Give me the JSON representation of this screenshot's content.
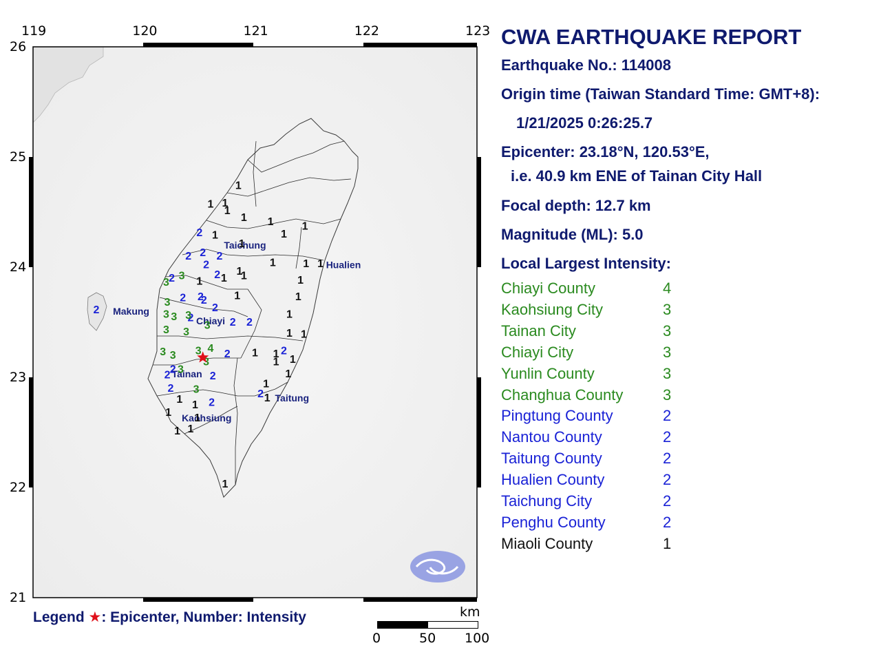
{
  "report": {
    "title": "CWA EARTHQUAKE REPORT",
    "eq_no": "Earthquake No.: 114008",
    "origin_label": "Origin time (Taiwan Standard Time: GMT+8):",
    "origin_time": "1/21/2025  0:26:25.7",
    "epicenter": "Epicenter: 23.18°N, 120.53°E,",
    "epicenter_ref": "i.e. 40.9 km ENE of Tainan City Hall",
    "depth": "Focal depth: 12.7 km",
    "magnitude": "Magnitude (ML): 5.0",
    "largest_heading": "Local Largest Intensity:"
  },
  "intensities": [
    {
      "name": "Chiayi County",
      "level": "4",
      "color": "#2a8a1f"
    },
    {
      "name": "Kaohsiung City",
      "level": "3",
      "color": "#2a8a1f"
    },
    {
      "name": "Tainan City",
      "level": "3",
      "color": "#2a8a1f"
    },
    {
      "name": "Chiayi City",
      "level": "3",
      "color": "#2a8a1f"
    },
    {
      "name": "Yunlin County",
      "level": "3",
      "color": "#2a8a1f"
    },
    {
      "name": "Changhua County",
      "level": "3",
      "color": "#2a8a1f"
    },
    {
      "name": "Pingtung County",
      "level": "2",
      "color": "#1a22d6"
    },
    {
      "name": "Nantou County",
      "level": "2",
      "color": "#1a22d6"
    },
    {
      "name": "Taitung County",
      "level": "2",
      "color": "#1a22d6"
    },
    {
      "name": "Hualien County",
      "level": "2",
      "color": "#1a22d6"
    },
    {
      "name": "Taichung City",
      "level": "2",
      "color": "#1a22d6"
    },
    {
      "name": "Penghu County",
      "level": "2",
      "color": "#1a22d6"
    },
    {
      "name": "Miaoli County",
      "level": "1",
      "color": "#111111"
    }
  ],
  "legend": {
    "prefix": "Legend ",
    "star": "★",
    "text": ": Epicenter, Number: Intensity"
  },
  "axes": {
    "lon_ticks": [
      "119",
      "120",
      "121",
      "122",
      "123"
    ],
    "lat_ticks": [
      "26",
      "25",
      "24",
      "23",
      "22",
      "21"
    ]
  },
  "scale_bar": {
    "unit": "km",
    "labels": [
      "0",
      "50",
      "100"
    ]
  },
  "cities": [
    {
      "name": "Taichung",
      "lon": 120.72,
      "lat": 24.17
    },
    {
      "name": "Hualien",
      "lon": 121.64,
      "lat": 23.99
    },
    {
      "name": "Makung",
      "lon": 119.72,
      "lat": 23.57
    },
    {
      "name": "Chiayi",
      "lon": 120.47,
      "lat": 23.48
    },
    {
      "name": "Tainan",
      "lon": 120.25,
      "lat": 23.0
    },
    {
      "name": "Taitung",
      "lon": 121.18,
      "lat": 22.78
    },
    {
      "name": "Kaohsiung",
      "lon": 120.34,
      "lat": 22.6
    }
  ],
  "epicenter_point": {
    "lon": 120.53,
    "lat": 23.18
  },
  "stations": [
    {
      "i": 1,
      "lon": 120.85,
      "lat": 24.71
    },
    {
      "i": 1,
      "lon": 120.6,
      "lat": 24.54
    },
    {
      "i": 1,
      "lon": 120.73,
      "lat": 24.55
    },
    {
      "i": 1,
      "lon": 120.75,
      "lat": 24.48
    },
    {
      "i": 1,
      "lon": 120.9,
      "lat": 24.42
    },
    {
      "i": 1,
      "lon": 121.14,
      "lat": 24.38
    },
    {
      "i": 1,
      "lon": 121.45,
      "lat": 24.34
    },
    {
      "i": 1,
      "lon": 121.26,
      "lat": 24.27
    },
    {
      "i": 1,
      "lon": 120.64,
      "lat": 24.26
    },
    {
      "i": 1,
      "lon": 120.88,
      "lat": 24.18
    },
    {
      "i": 1,
      "lon": 121.16,
      "lat": 24.01
    },
    {
      "i": 1,
      "lon": 121.46,
      "lat": 24.0
    },
    {
      "i": 1,
      "lon": 121.59,
      "lat": 24.0
    },
    {
      "i": 1,
      "lon": 120.86,
      "lat": 23.93
    },
    {
      "i": 1,
      "lon": 120.9,
      "lat": 23.89
    },
    {
      "i": 1,
      "lon": 120.72,
      "lat": 23.87
    },
    {
      "i": 1,
      "lon": 121.41,
      "lat": 23.85
    },
    {
      "i": 1,
      "lon": 120.5,
      "lat": 23.84
    },
    {
      "i": 1,
      "lon": 120.84,
      "lat": 23.71
    },
    {
      "i": 1,
      "lon": 121.39,
      "lat": 23.7
    },
    {
      "i": 1,
      "lon": 121.31,
      "lat": 23.54
    },
    {
      "i": 1,
      "lon": 121.31,
      "lat": 23.37
    },
    {
      "i": 1,
      "lon": 121.44,
      "lat": 23.36
    },
    {
      "i": 1,
      "lon": 121.0,
      "lat": 23.19
    },
    {
      "i": 1,
      "lon": 121.19,
      "lat": 23.18
    },
    {
      "i": 1,
      "lon": 121.19,
      "lat": 23.11
    },
    {
      "i": 1,
      "lon": 121.34,
      "lat": 23.13
    },
    {
      "i": 1,
      "lon": 121.3,
      "lat": 23.0
    },
    {
      "i": 1,
      "lon": 121.1,
      "lat": 22.91
    },
    {
      "i": 1,
      "lon": 120.32,
      "lat": 22.77
    },
    {
      "i": 1,
      "lon": 120.46,
      "lat": 22.72
    },
    {
      "i": 1,
      "lon": 120.48,
      "lat": 22.6
    },
    {
      "i": 1,
      "lon": 120.22,
      "lat": 22.65
    },
    {
      "i": 1,
      "lon": 120.3,
      "lat": 22.48
    },
    {
      "i": 1,
      "lon": 120.42,
      "lat": 22.5
    },
    {
      "i": 1,
      "lon": 120.73,
      "lat": 22.0
    },
    {
      "i": 1,
      "lon": 121.11,
      "lat": 22.78
    },
    {
      "i": 2,
      "lon": 120.5,
      "lat": 24.28
    },
    {
      "i": 2,
      "lon": 120.4,
      "lat": 24.07
    },
    {
      "i": 2,
      "lon": 120.53,
      "lat": 24.1
    },
    {
      "i": 2,
      "lon": 120.68,
      "lat": 24.07
    },
    {
      "i": 2,
      "lon": 120.56,
      "lat": 23.99
    },
    {
      "i": 2,
      "lon": 120.66,
      "lat": 23.9
    },
    {
      "i": 2,
      "lon": 120.25,
      "lat": 23.87
    },
    {
      "i": 2,
      "lon": 120.35,
      "lat": 23.69
    },
    {
      "i": 2,
      "lon": 120.51,
      "lat": 23.7
    },
    {
      "i": 2,
      "lon": 120.54,
      "lat": 23.67
    },
    {
      "i": 2,
      "lon": 120.64,
      "lat": 23.6
    },
    {
      "i": 2,
      "lon": 120.42,
      "lat": 23.51
    },
    {
      "i": 2,
      "lon": 120.8,
      "lat": 23.47
    },
    {
      "i": 2,
      "lon": 120.95,
      "lat": 23.47
    },
    {
      "i": 2,
      "lon": 120.75,
      "lat": 23.18
    },
    {
      "i": 2,
      "lon": 120.21,
      "lat": 22.99
    },
    {
      "i": 2,
      "lon": 120.24,
      "lat": 22.87
    },
    {
      "i": 2,
      "lon": 120.62,
      "lat": 22.98
    },
    {
      "i": 2,
      "lon": 120.61,
      "lat": 22.74
    },
    {
      "i": 2,
      "lon": 121.26,
      "lat": 23.21
    },
    {
      "i": 2,
      "lon": 121.05,
      "lat": 22.82
    },
    {
      "i": 2,
      "lon": 119.57,
      "lat": 23.58
    },
    {
      "i": 2,
      "lon": 120.26,
      "lat": 23.04
    },
    {
      "i": 3,
      "lon": 120.2,
      "lat": 23.83
    },
    {
      "i": 3,
      "lon": 120.34,
      "lat": 23.89
    },
    {
      "i": 3,
      "lon": 120.21,
      "lat": 23.65
    },
    {
      "i": 3,
      "lon": 120.2,
      "lat": 23.54
    },
    {
      "i": 3,
      "lon": 120.27,
      "lat": 23.52
    },
    {
      "i": 3,
      "lon": 120.4,
      "lat": 23.53
    },
    {
      "i": 3,
      "lon": 120.57,
      "lat": 23.44
    },
    {
      "i": 3,
      "lon": 120.2,
      "lat": 23.4
    },
    {
      "i": 3,
      "lon": 120.38,
      "lat": 23.38
    },
    {
      "i": 3,
      "lon": 120.49,
      "lat": 23.21
    },
    {
      "i": 3,
      "lon": 120.17,
      "lat": 23.2
    },
    {
      "i": 3,
      "lon": 120.26,
      "lat": 23.17
    },
    {
      "i": 3,
      "lon": 120.33,
      "lat": 23.04
    },
    {
      "i": 3,
      "lon": 120.56,
      "lat": 23.11
    },
    {
      "i": 3,
      "lon": 120.47,
      "lat": 22.86
    },
    {
      "i": 4,
      "lon": 120.6,
      "lat": 23.23
    }
  ]
}
